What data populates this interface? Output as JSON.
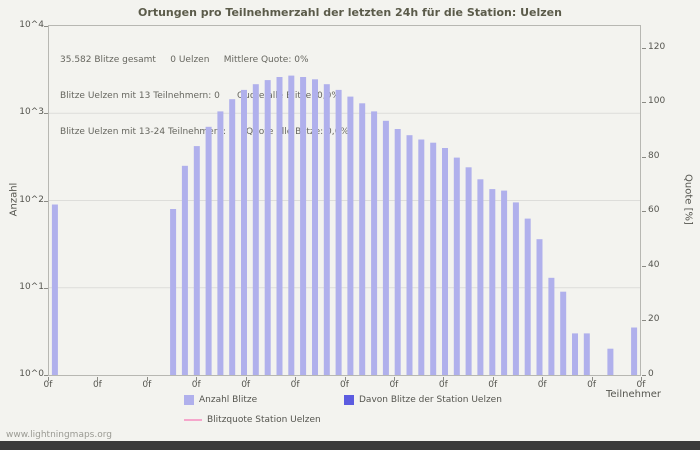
{
  "page": {
    "title": "Ortungen pro Teilnehmerzahl der letzten 24h für die Station: Uelzen",
    "watermark": "www.lightningmaps.org"
  },
  "stats_lines": [
    "35.582 Blitze gesamt     0 Uelzen     Mittlere Quote: 0%",
    "Blitze Uelzen mit 13 Teilnehmern: 0      Quote alle Blitze: 0,0%",
    "Blitze Uelzen mit 13-24 Teilnehmern: 0    Quote alle Blitze: 0,0%"
  ],
  "axes": {
    "left_title": "Anzahl",
    "right_title": "Quote [%]",
    "x_title": "Teilnehmer"
  },
  "legend": [
    {
      "label": "Anzahl Blitze",
      "color": "#b0b0ec",
      "marker": "square"
    },
    {
      "label": "Davon Blitze der Station Uelzen",
      "color": "#5c5ce0",
      "marker": "square"
    },
    {
      "label": "Blitzquote Station Uelzen",
      "color": "#f5a6cb",
      "marker": "line"
    }
  ],
  "chart_data": {
    "type": "bar",
    "title": "Ortungen pro Teilnehmerzahl der letzten 24h für die Station: Uelzen",
    "xlabel": "Teilnehmer",
    "ylabel_left": "Anzahl",
    "ylabel_right": "Quote [%]",
    "y_scale_left": "log10",
    "ylim_left": [
      1,
      10000
    ],
    "ylim_right": [
      0,
      128
    ],
    "y_ticks_left": [
      "10^0",
      "10^1",
      "10^2",
      "10^3",
      "10^4"
    ],
    "y_ticks_right": [
      0,
      20,
      40,
      60,
      80,
      100,
      120
    ],
    "x_ticks": [
      "0f",
      "0f",
      "0f",
      "0f",
      "0f",
      "0f",
      "0f",
      "0f",
      "0f",
      "0f",
      "0f",
      "0f",
      "0f"
    ],
    "grid": "horizontal-decades",
    "legend_position": "bottom",
    "bar_color": "#b0b0ec",
    "station_bar_color": "#5c5ce0",
    "quote_line_color": "#f5a6cb",
    "series": [
      {
        "name": "Anzahl Blitze",
        "values": [
          90,
          0,
          0,
          0,
          0,
          0,
          0,
          0,
          0,
          0,
          80,
          250,
          420,
          700,
          1050,
          1450,
          1850,
          2150,
          2400,
          2600,
          2700,
          2600,
          2450,
          2150,
          1850,
          1550,
          1300,
          1050,
          820,
          660,
          560,
          500,
          460,
          400,
          310,
          240,
          175,
          135,
          130,
          95,
          62,
          36,
          13,
          9,
          3,
          3,
          0,
          2,
          0,
          3.5
        ]
      },
      {
        "name": "Davon Blitze der Station Uelzen",
        "constant_value": 0
      },
      {
        "name": "Blitzquote Station Uelzen",
        "constant_percent": 0
      }
    ],
    "stats": {
      "total_blitze": "35.582",
      "uelzen_blitze": "0",
      "mittlere_quote": "0%",
      "quote_alle_blitze_13": "0,0%",
      "quote_alle_blitze_13_24": "0,0%"
    }
  }
}
